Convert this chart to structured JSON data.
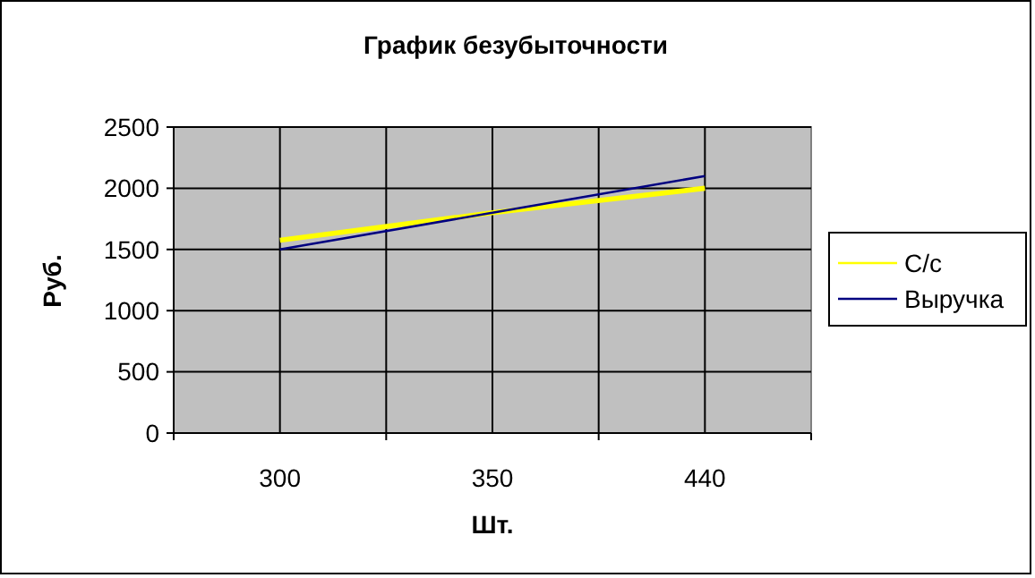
{
  "chart_data": {
    "type": "line",
    "title": "График безубыточности",
    "xlabel": "Шт.",
    "ylabel": "Руб.",
    "categories": [
      "300",
      "350",
      "440"
    ],
    "series": [
      {
        "name": "С/с",
        "color": "#ffff00",
        "values": [
          1575,
          1800,
          2000
        ]
      },
      {
        "name": "Выручка",
        "color": "#000080",
        "values": [
          1500,
          1800,
          2100
        ]
      }
    ],
    "ylim": [
      0,
      2500
    ],
    "yticks": [
      0,
      500,
      1000,
      1500,
      2000,
      2500
    ],
    "grid": true,
    "legend": "right",
    "marker": "none"
  }
}
